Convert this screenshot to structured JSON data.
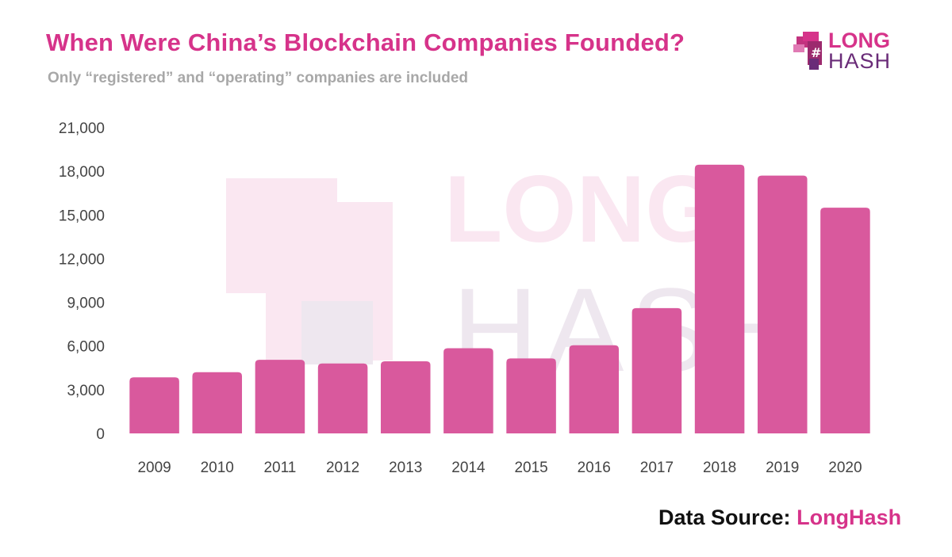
{
  "title": "When Were China’s Blockchain Companies Founded?",
  "subtitle": "Only “registered” and “operating” companies are included",
  "logo": {
    "line1": "LONG",
    "line2": "HASH"
  },
  "watermark": {
    "line1": "LONG",
    "line2": "HASH"
  },
  "source": {
    "prefix": "Data Source:",
    "name": "LongHash"
  },
  "colors": {
    "bar": "#d9599d",
    "title": "#d6338a",
    "subtitle": "#a8a8a8",
    "axis_text": "#444444"
  },
  "chart_data": {
    "type": "bar",
    "categories": [
      "2009",
      "2010",
      "2011",
      "2012",
      "2013",
      "2014",
      "2015",
      "2016",
      "2017",
      "2018",
      "2019",
      "2020"
    ],
    "values": [
      3850,
      4200,
      5050,
      4800,
      4950,
      5850,
      5150,
      6050,
      8600,
      18450,
      17700,
      15500
    ],
    "ylim": [
      0,
      21000
    ],
    "yticks": [
      "0",
      "3,000",
      "6,000",
      "9,000",
      "12,000",
      "15,000",
      "18,000",
      "21,000"
    ],
    "ytick_values": [
      0,
      3000,
      6000,
      9000,
      12000,
      15000,
      18000,
      21000
    ],
    "title": "When Were China’s Blockchain Companies Founded?",
    "xlabel": "",
    "ylabel": "",
    "grid": false,
    "legend": "none"
  }
}
